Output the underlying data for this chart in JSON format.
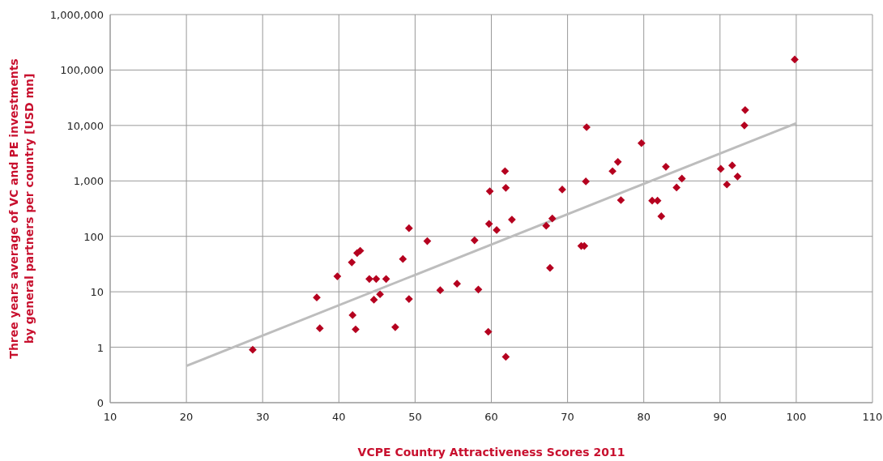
{
  "chart_data": {
    "type": "scatter",
    "xlabel": "VCPE Country Attractiveness Scores 2011",
    "ylabel": "Three years average of VC and PE investments\nby general partners per country [USD mn]",
    "log": "y",
    "grid": true,
    "xlim": [
      10,
      110
    ],
    "xticks": [
      10,
      20,
      30,
      40,
      50,
      60,
      70,
      80,
      90,
      100,
      110
    ],
    "ylim": [
      0.1,
      1000000
    ],
    "yticks": [
      {
        "value": 0.1,
        "label": "0"
      },
      1,
      10,
      100,
      {
        "value": 1000,
        "label": "1,000"
      },
      {
        "value": 10000,
        "label": "10,000"
      },
      {
        "value": 100000,
        "label": "100,000"
      },
      {
        "value": 1000000,
        "label": "1,000,000"
      }
    ],
    "series": [
      {
        "marker": "diamond",
        "color": "#b5001f",
        "x": [
          28.7,
          37.1,
          37.5,
          39.8,
          41.7,
          41.8,
          42.2,
          42.4,
          42.8,
          44.0,
          44.6,
          44.9,
          45.4,
          46.2,
          47.4,
          48.4,
          49.2,
          49.2,
          51.6,
          53.3,
          55.5,
          57.8,
          58.3,
          59.6,
          59.7,
          59.8,
          60.7,
          61.8,
          61.9,
          61.9,
          62.7,
          67.2,
          67.7,
          68.0,
          69.3,
          71.8,
          72.2,
          72.5,
          72.4,
          75.9,
          76.6,
          77.0,
          79.7,
          81.1,
          81.8,
          82.3,
          82.9,
          84.3,
          85.0,
          90.1,
          90.9,
          91.6,
          92.3,
          93.2,
          93.3,
          99.8
        ],
        "values": [
          0.9,
          7.9,
          2.2,
          19,
          34,
          3.8,
          2.1,
          50,
          55,
          17,
          7.2,
          17,
          9,
          17,
          2.3,
          39,
          7.4,
          140,
          82,
          10.7,
          14,
          85,
          11,
          1.9,
          168,
          650,
          130,
          1500,
          750,
          0.67,
          200,
          155,
          27,
          210,
          700,
          67,
          67,
          9300,
          980,
          1500,
          2200,
          450,
          4800,
          440,
          440,
          230,
          1800,
          760,
          1100,
          1650,
          860,
          1900,
          1200,
          10000,
          19000,
          155000
        ]
      },
      {
        "type": "line",
        "color": "#bdbdbd",
        "x": [
          20,
          100
        ],
        "values": [
          0.46,
          11000
        ]
      }
    ]
  }
}
